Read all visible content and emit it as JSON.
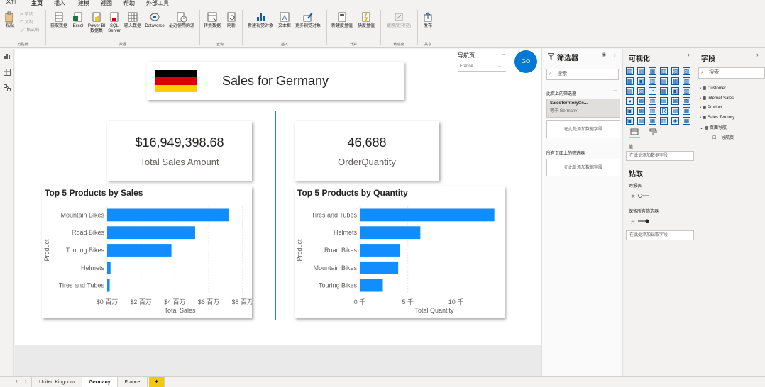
{
  "menu": {
    "file": "文件",
    "tabs": [
      "主页",
      "插入",
      "建模",
      "视图",
      "帮助",
      "外部工具"
    ]
  },
  "ribbon": {
    "clipboard": {
      "paste": "粘贴",
      "cut": "剪切",
      "copy": "复制",
      "format": "格式刷",
      "group": "剪贴板"
    },
    "data": {
      "get_data": "获取数据",
      "excel": "Excel",
      "powerbi_line1": "Power BI",
      "powerbi_line2": "数据集",
      "sql_line1": "SQL",
      "sql_line2": "Server",
      "enter_data": "输入数据",
      "dataverse": "Dataverse",
      "recent": "最近使用的源",
      "group": "数据"
    },
    "query": {
      "transform": "转换数据",
      "refresh": "刷新",
      "group": "查询"
    },
    "insert": {
      "new_visual": "新建视觉对象",
      "textbox": "文本框",
      "more_visuals": "更多视觉对象",
      "group": "插入"
    },
    "calc": {
      "new_measure": "新建度量值",
      "quick_measure": "快度量值",
      "group": "计算"
    },
    "sensitivity": {
      "label": "敏感度(预览)",
      "group": "敏感度"
    },
    "share": {
      "publish": "发布",
      "group": "共享"
    }
  },
  "report": {
    "title": "Sales for Germany",
    "nav_label": "导航页",
    "nav_value": "France",
    "go_label": "GO",
    "card1": {
      "value": "$16,949,398.68",
      "label": "Total Sales Amount"
    },
    "card2": {
      "value": "46,688",
      "label": "OrderQuantity"
    }
  },
  "chart_data": [
    {
      "type": "bar",
      "title": "Top 5 Products by Sales",
      "categories": [
        "Mountain Bikes",
        "Road Bikes",
        "Touring Bikes",
        "Helmets",
        "Tires and Tubes"
      ],
      "values": [
        7.2,
        5.2,
        3.8,
        0.2,
        0.15
      ],
      "xlabel": "Total Sales",
      "ylabel": "Product",
      "xticks": [
        "$0 百万",
        "$2 百万",
        "$4 百万",
        "$6 百万",
        "$8 百万"
      ],
      "xtick_values": [
        0,
        2,
        4,
        6,
        8
      ],
      "xlim": [
        0,
        8.6
      ],
      "color": "#118dff"
    },
    {
      "type": "bar",
      "title": "Top 5 Products by Quantity",
      "categories": [
        "Tires and Tubes",
        "Helmets",
        "Road Bikes",
        "Mountain Bikes",
        "Touring Bikes"
      ],
      "values": [
        14.0,
        6.3,
        4.2,
        4.0,
        2.4
      ],
      "xlabel": "Total Quantity",
      "ylabel": "Product",
      "xticks": [
        "0 千",
        "5 千",
        "10 千"
      ],
      "xtick_values": [
        0,
        5,
        10
      ],
      "xlim": [
        0,
        15.5
      ],
      "color": "#118dff"
    }
  ],
  "filters": {
    "title": "筛选器",
    "search": "搜索",
    "on_page": "此页上的筛选器",
    "card_name": "SalesTerritoryCo...",
    "card_value": "等于 Germany",
    "add_field": "在此处添加数据字段",
    "all_pages": "所有页面上的筛选器",
    "add_field2": "在此处添加数据字段"
  },
  "visualizations": {
    "title": "可视化",
    "values_label": "值",
    "add_values": "在此处添加数据字段",
    "drill_title": "钻取",
    "cross_report": "跨报表",
    "cross_state": "关",
    "keep_filters": "保留所有筛选器",
    "keep_state": "开",
    "add_drill": "在此处添加钻取字段"
  },
  "fields": {
    "title": "字段",
    "search": "搜索",
    "items": [
      "Customer",
      "Internet Sales",
      "Product",
      "Sales Territory",
      "页面导航"
    ],
    "sub_item": "导航页"
  },
  "page_tabs": [
    "United Kingdom",
    "Germany",
    "France"
  ],
  "add_page": "+",
  "colors": {
    "accent": "#118dff",
    "go_button": "#0078d4",
    "divider": "#2b78c4",
    "flag_black": "#000000",
    "flag_red": "#dd0000",
    "flag_gold": "#ffce00",
    "new_page": "#f2c811"
  }
}
